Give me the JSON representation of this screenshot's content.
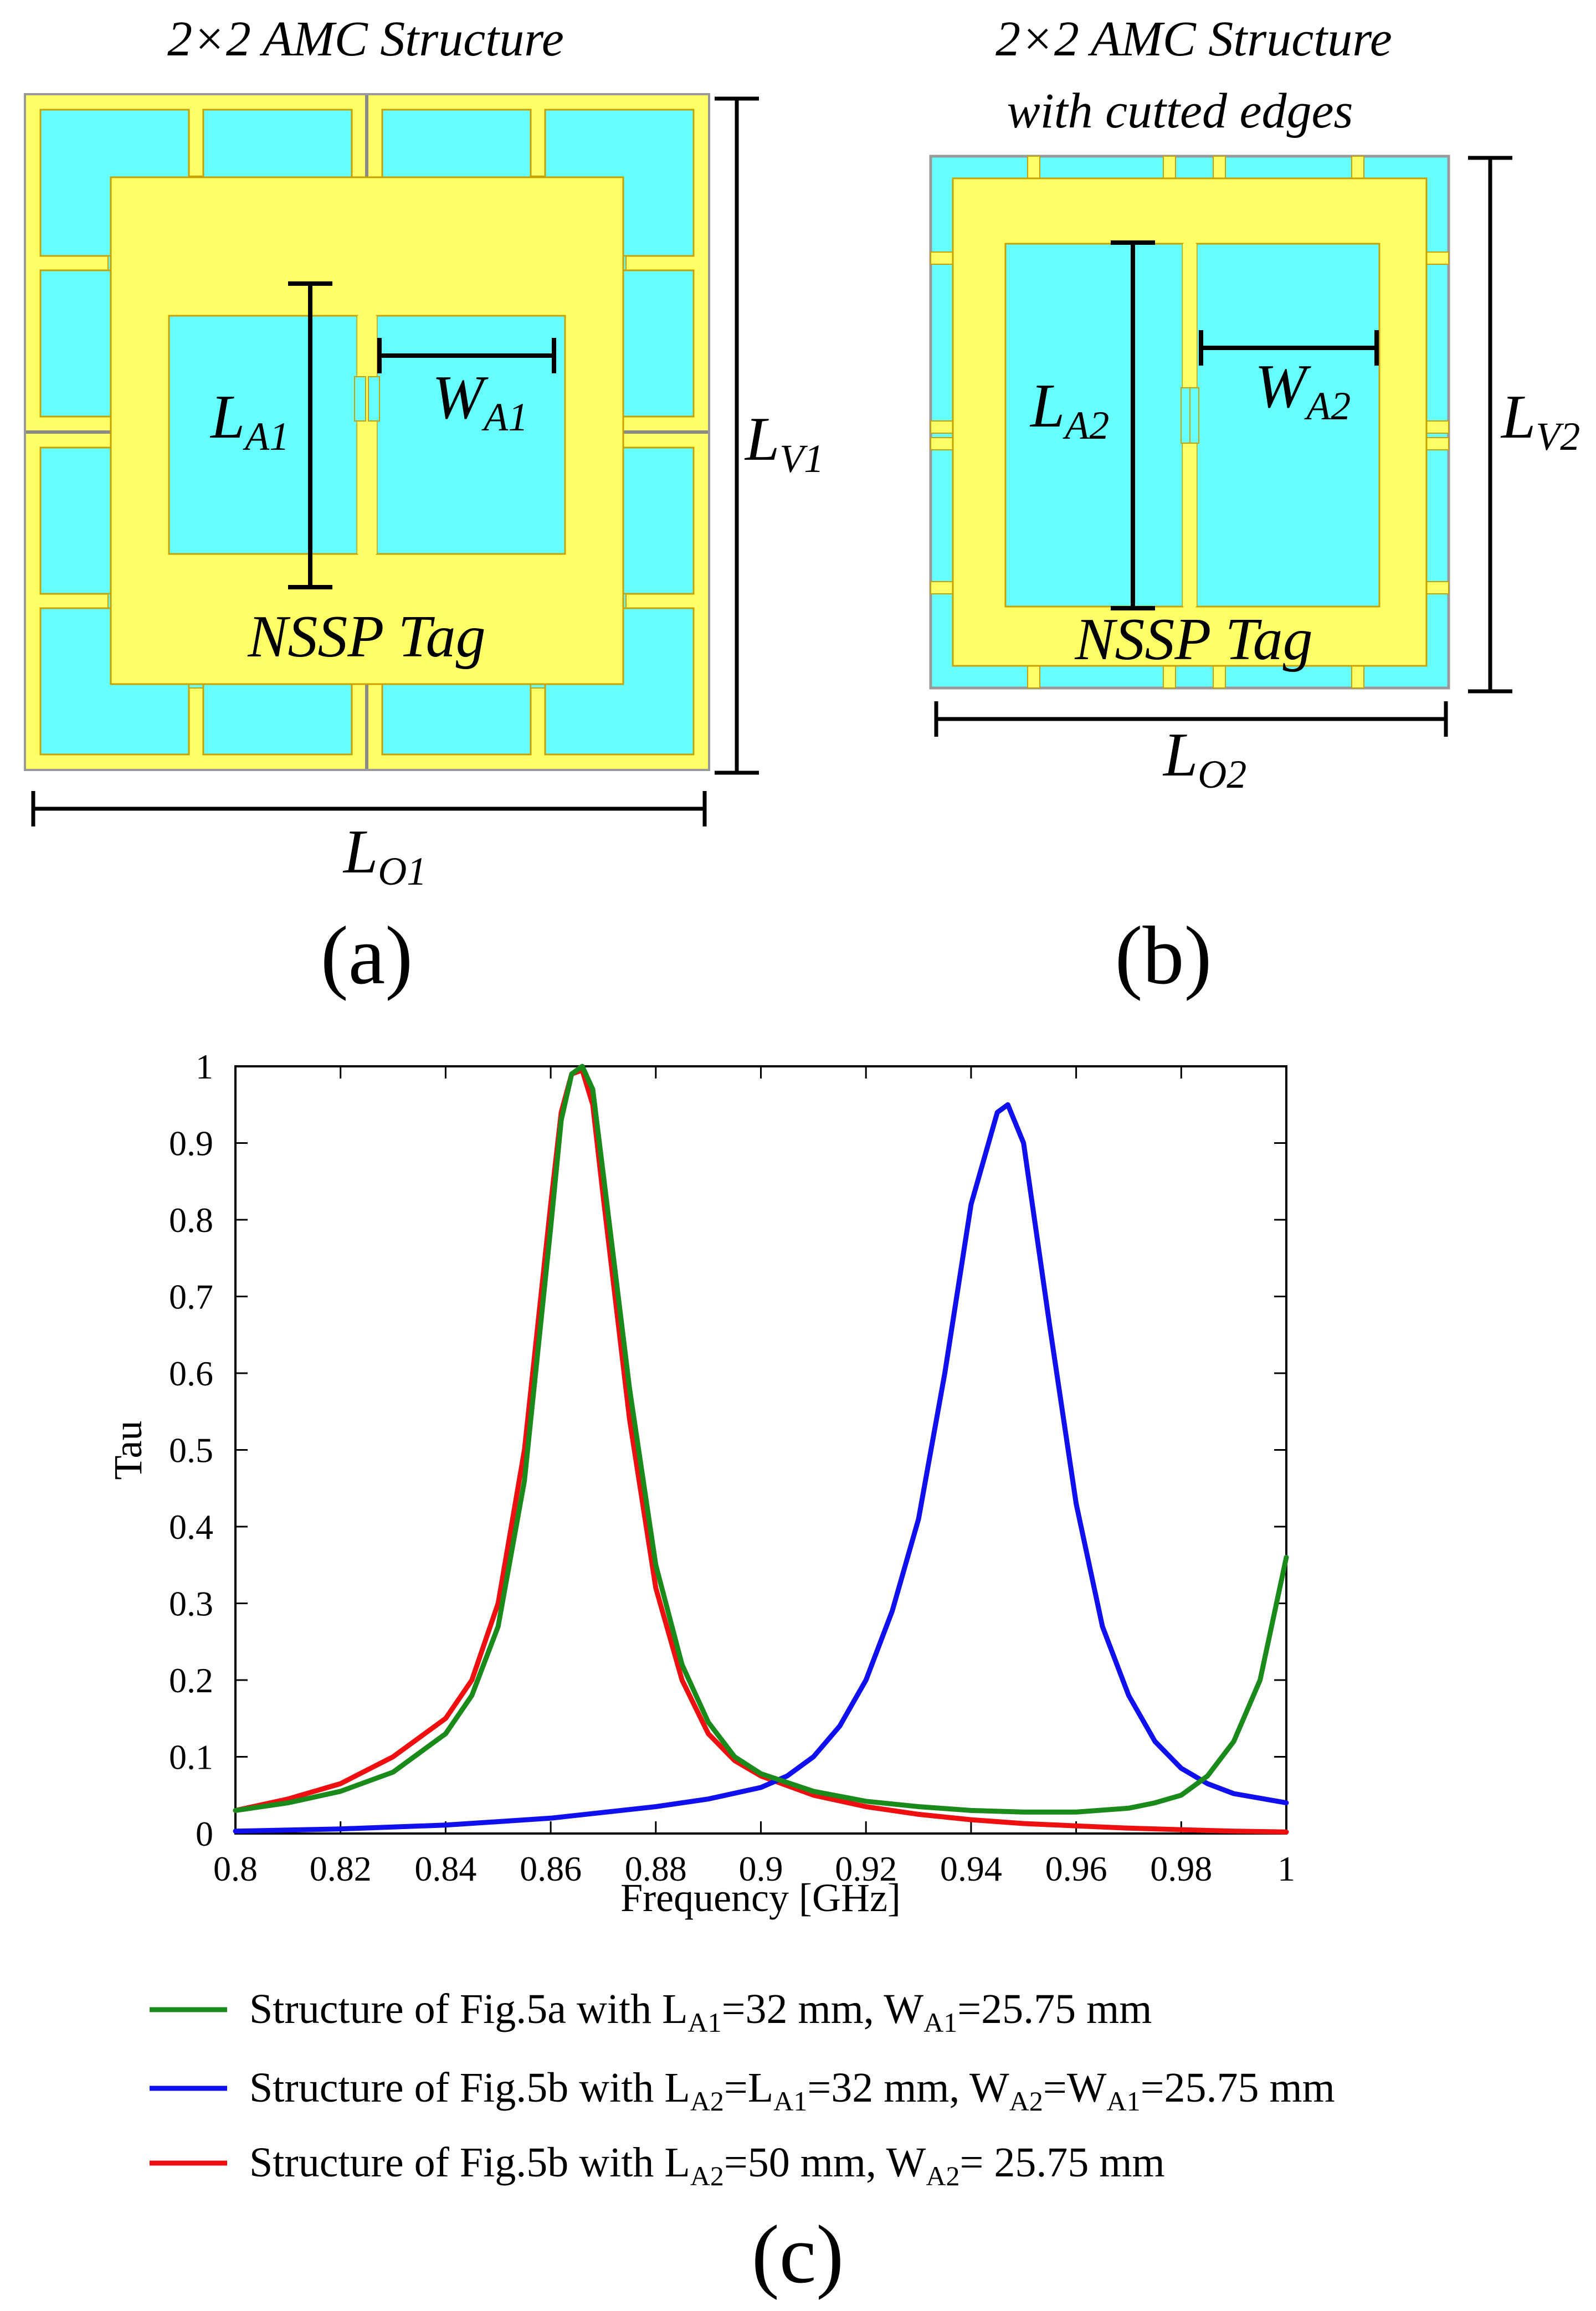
{
  "figure_a": {
    "title": "2×2 AMC Structure",
    "tag_label": "NSSP Tag",
    "dim_length_main": "L",
    "dim_length_sub": "A1",
    "dim_width_main": "W",
    "dim_width_sub": "A1",
    "dim_vert_main": "L",
    "dim_vert_sub": "V1",
    "dim_outer_main": "L",
    "dim_outer_sub": "O1",
    "panel_label": "(a)"
  },
  "figure_b": {
    "title_line1": "2×2 AMC Structure",
    "title_line2": "with cutted edges",
    "tag_label": "NSSP Tag",
    "dim_length_main": "L",
    "dim_length_sub": "A2",
    "dim_width_main": "W",
    "dim_width_sub": "A2",
    "dim_vert_main": "L",
    "dim_vert_sub": "V2",
    "dim_outer_main": "L",
    "dim_outer_sub": "O2",
    "panel_label": "(b)"
  },
  "colors": {
    "patch": "#66ffff",
    "substrate": "#ffff66",
    "edge": "#c8a000",
    "series_green": "#1a8a1a",
    "series_blue": "#1010ee",
    "series_red": "#ee1010"
  },
  "chart_data": {
    "type": "line",
    "xlabel": "Frequency [GHz]",
    "ylabel": "Tau",
    "xlim": [
      0.8,
      1.0
    ],
    "ylim": [
      0,
      1
    ],
    "xticks": [
      "0.8",
      "0.82",
      "0.84",
      "0.86",
      "0.88",
      "0.9",
      "0.92",
      "0.94",
      "0.96",
      "0.98",
      "1"
    ],
    "yticks": [
      "0",
      "0.1",
      "0.2",
      "0.3",
      "0.4",
      "0.5",
      "0.6",
      "0.7",
      "0.8",
      "0.9",
      "1"
    ],
    "grid": false,
    "legend_placement": "below",
    "series": [
      {
        "name": "Structure of Fig.5a with LA1=32 mm, WA1=25.75 mm",
        "color": "green",
        "x": [
          0.8,
          0.81,
          0.82,
          0.83,
          0.84,
          0.845,
          0.85,
          0.855,
          0.86,
          0.862,
          0.864,
          0.866,
          0.868,
          0.87,
          0.875,
          0.88,
          0.885,
          0.89,
          0.895,
          0.9,
          0.91,
          0.92,
          0.93,
          0.94,
          0.95,
          0.96,
          0.97,
          0.975,
          0.98,
          0.985,
          0.99,
          0.995,
          1.0
        ],
        "y": [
          0.03,
          0.04,
          0.055,
          0.08,
          0.13,
          0.18,
          0.27,
          0.46,
          0.79,
          0.93,
          0.99,
          1.0,
          0.97,
          0.86,
          0.58,
          0.35,
          0.22,
          0.145,
          0.1,
          0.078,
          0.055,
          0.042,
          0.035,
          0.03,
          0.028,
          0.028,
          0.033,
          0.04,
          0.05,
          0.075,
          0.12,
          0.2,
          0.36
        ]
      },
      {
        "name": "Structure of Fig.5b with LA2=LA1=32 mm, WA2=WA1=25.75 mm",
        "color": "blue",
        "x": [
          0.8,
          0.82,
          0.84,
          0.86,
          0.88,
          0.89,
          0.9,
          0.905,
          0.91,
          0.915,
          0.92,
          0.925,
          0.93,
          0.935,
          0.94,
          0.945,
          0.947,
          0.95,
          0.955,
          0.96,
          0.965,
          0.97,
          0.975,
          0.98,
          0.985,
          0.99,
          1.0
        ],
        "y": [
          0.003,
          0.006,
          0.011,
          0.02,
          0.035,
          0.045,
          0.06,
          0.075,
          0.1,
          0.14,
          0.2,
          0.29,
          0.41,
          0.6,
          0.82,
          0.94,
          0.95,
          0.9,
          0.66,
          0.43,
          0.27,
          0.18,
          0.12,
          0.085,
          0.065,
          0.052,
          0.04
        ]
      },
      {
        "name": "Structure of Fig.5b with LA2=50 mm, WA2= 25.75 mm",
        "color": "red",
        "x": [
          0.8,
          0.81,
          0.82,
          0.83,
          0.84,
          0.845,
          0.85,
          0.855,
          0.86,
          0.862,
          0.864,
          0.866,
          0.868,
          0.87,
          0.875,
          0.88,
          0.885,
          0.89,
          0.895,
          0.9,
          0.91,
          0.92,
          0.93,
          0.94,
          0.95,
          0.96,
          0.97,
          0.98,
          0.99,
          1.0
        ],
        "y": [
          0.03,
          0.045,
          0.065,
          0.1,
          0.15,
          0.2,
          0.3,
          0.5,
          0.82,
          0.94,
          0.99,
          0.995,
          0.95,
          0.83,
          0.54,
          0.32,
          0.2,
          0.13,
          0.095,
          0.075,
          0.05,
          0.035,
          0.025,
          0.018,
          0.013,
          0.01,
          0.007,
          0.005,
          0.003,
          0.002
        ]
      }
    ]
  },
  "legend": [
    {
      "pre": "Structure of Fig.5a with L",
      "s1": "A1",
      "mid1": "=32 mm, W",
      "s2": "A1",
      "mid2": "=25.75 mm",
      "s3": "",
      "mid3": "",
      "s4": "",
      "post": ""
    },
    {
      "pre": "Structure of Fig.5b with L",
      "s1": "A2",
      "mid1": "=L",
      "s2": "A1",
      "mid2": "=32 mm, W",
      "s3": "A2",
      "mid3": "=W",
      "s4": "A1",
      "post": "=25.75 mm"
    },
    {
      "pre": "Structure of Fig.5b with L",
      "s1": "A2",
      "mid1": "=50 mm, W",
      "s2": "A2",
      "mid2": "= 25.75 mm",
      "s3": "",
      "mid3": "",
      "s4": "",
      "post": ""
    }
  ],
  "panel_c_label": "(c)"
}
